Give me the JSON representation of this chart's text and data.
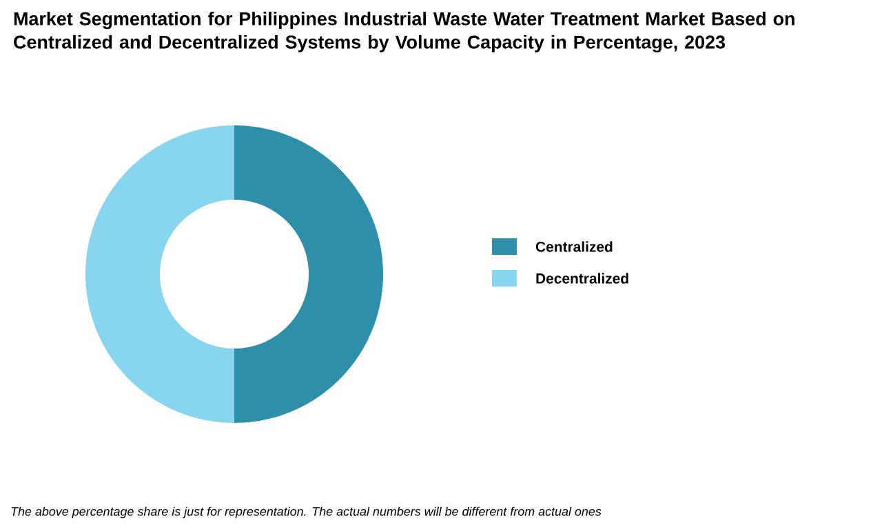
{
  "chart_data": {
    "type": "donut",
    "title": "Market Segmentation for Philippines Industrial Waste Water Treatment Market Based on Centralized and Decentralized Systems by Volume Capacity in Percentage, 2023",
    "categories": [
      "Centralized",
      "Decentralized"
    ],
    "values": [
      50,
      50
    ],
    "colors": [
      "#2e8fab",
      "#87d5ef"
    ],
    "legend": "right",
    "annotations": [
      "The above percentage share is just for representation. The actual numbers will be different from actual ones"
    ]
  }
}
